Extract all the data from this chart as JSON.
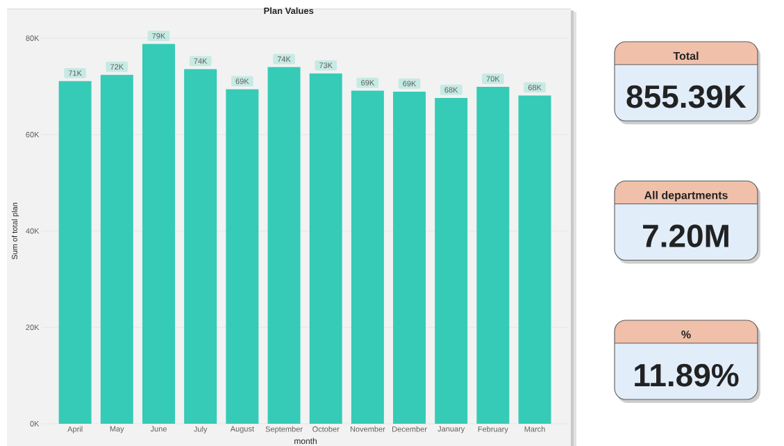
{
  "chart_data": [
    {
      "type": "bar",
      "title": "Plan Values",
      "xlabel": "month",
      "ylabel": "Sum of total plan",
      "categories": [
        "April",
        "May",
        "June",
        "July",
        "August",
        "September",
        "October",
        "November",
        "December",
        "January",
        "February",
        "March"
      ],
      "values": [
        71100,
        72400,
        78800,
        73600,
        69400,
        74000,
        72700,
        69100,
        68900,
        67600,
        69900,
        68100
      ],
      "value_labels": [
        "71K",
        "72K",
        "79K",
        "74K",
        "69K",
        "74K",
        "73K",
        "69K",
        "69K",
        "68K",
        "70K",
        "68K"
      ],
      "color": "#36cbb6",
      "ylim": [
        0,
        80000
      ],
      "yticks": [
        {
          "value": 0,
          "label": "0K"
        },
        {
          "value": 20000,
          "label": "20K"
        },
        {
          "value": 40000,
          "label": "40K"
        },
        {
          "value": 60000,
          "label": "60K"
        },
        {
          "value": 80000,
          "label": "80K"
        }
      ],
      "grid": "y"
    },
    {
      "type": "other",
      "annotations": [
        "Total",
        "855.39K",
        "All departments",
        "7.20M",
        "%",
        "11.89%"
      ]
    }
  ]
}
